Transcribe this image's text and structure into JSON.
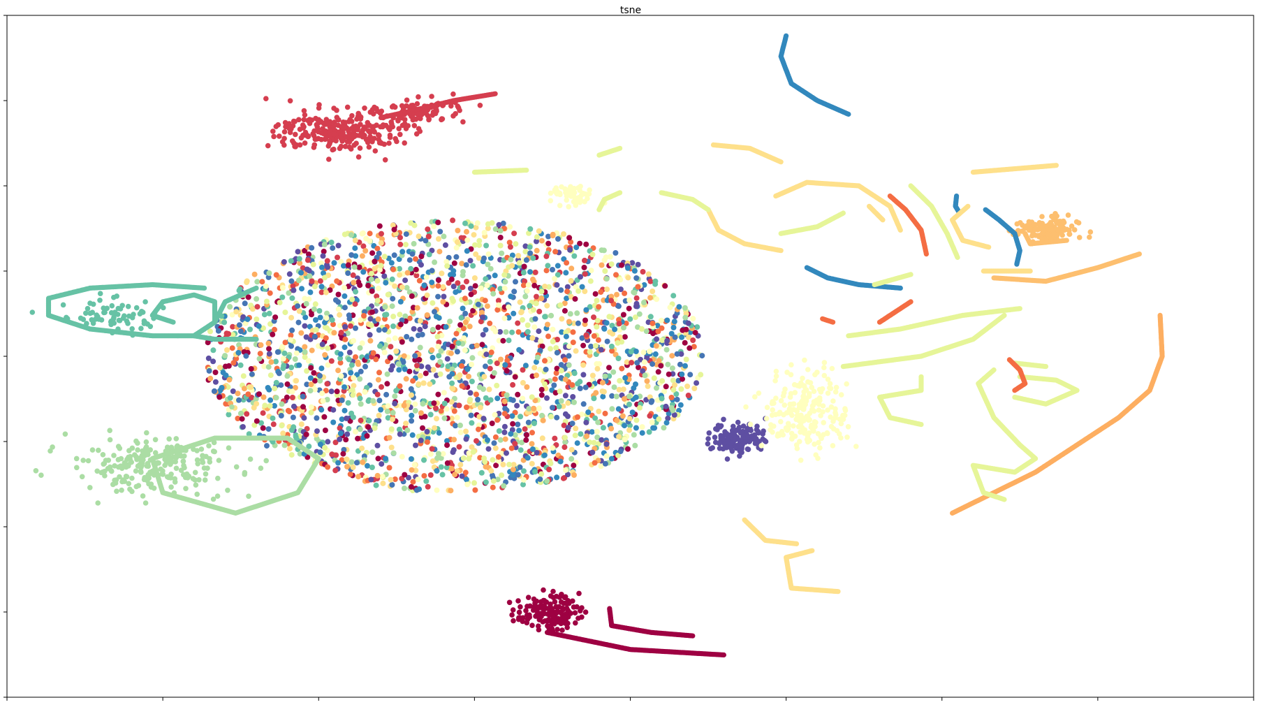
{
  "chart_data": {
    "type": "scatter",
    "title": "tsne",
    "xlabel": "",
    "ylabel": "",
    "xlim": [
      -60,
      60
    ],
    "ylim": [
      -50,
      50
    ],
    "xticks": [
      -60,
      -45,
      -30,
      -15,
      0,
      15,
      30,
      45,
      60
    ],
    "yticks": [
      -50,
      -37.5,
      -25,
      -12.5,
      0,
      12.5,
      25,
      37.5,
      50
    ],
    "tick_labels_visible": false,
    "grid": false,
    "legend": "none",
    "cloud": {
      "center": [
        -17,
        0
      ],
      "radius": [
        24,
        20
      ],
      "count": 2600,
      "colors": [
        "#4575b4",
        "#5e4fa2",
        "#3288bd",
        "#66c2a5",
        "#abdda4",
        "#e6f598",
        "#fee08b",
        "#fdae61",
        "#f46d43",
        "#d53e4f",
        "#9e0142",
        "#ffffbf"
      ]
    },
    "blobs": [
      {
        "color": "#d53e4f",
        "center": [
          -28,
          33
        ],
        "radius": [
          6,
          3
        ],
        "count": 260
      },
      {
        "color": "#d53e4f",
        "center": [
          -20,
          36
        ],
        "radius": [
          4,
          1.8
        ],
        "count": 90
      },
      {
        "color": "#66c2a5",
        "center": [
          -50,
          6
        ],
        "radius": [
          5,
          2.5
        ],
        "count": 70
      },
      {
        "color": "#abdda4",
        "center": [
          -46,
          -16
        ],
        "radius": [
          8,
          4
        ],
        "count": 230
      },
      {
        "color": "#9e0142",
        "center": [
          -8,
          -37.5
        ],
        "radius": [
          3,
          2.5
        ],
        "count": 140
      },
      {
        "color": "#5e4fa2",
        "center": [
          10.5,
          -12
        ],
        "radius": [
          2.6,
          2.4
        ],
        "count": 130
      },
      {
        "color": "#ffffbf",
        "center": [
          17,
          -8
        ],
        "radius": [
          4,
          6
        ],
        "count": 220
      },
      {
        "color": "#ffffbf",
        "center": [
          -5.5,
          23.5
        ],
        "radius": [
          2,
          1.5
        ],
        "count": 50
      },
      {
        "color": "#fdbf6f",
        "center": [
          40,
          18.5
        ],
        "radius": [
          3,
          2
        ],
        "count": 120
      }
    ],
    "series": [
      {
        "color": "#66c2a5",
        "points": [
          [
            -41,
            10
          ],
          [
            -46,
            10.5
          ],
          [
            -52,
            10
          ],
          [
            -56,
            8.5
          ],
          [
            -56,
            6
          ],
          [
            -52,
            4
          ],
          [
            -46,
            3
          ],
          [
            -42,
            3
          ],
          [
            -40,
            5
          ],
          [
            -40,
            8
          ],
          [
            -42,
            9
          ],
          [
            -45,
            8
          ],
          [
            -46,
            6
          ],
          [
            -44,
            5
          ]
        ]
      },
      {
        "color": "#66c2a5",
        "points": [
          [
            -36,
            10
          ],
          [
            -39,
            8
          ],
          [
            -40,
            5
          ],
          [
            -42,
            3
          ],
          [
            -40,
            2.5
          ],
          [
            -36,
            2.5
          ]
        ]
      },
      {
        "color": "#abdda4",
        "points": [
          [
            -33,
            -12
          ],
          [
            -40,
            -12
          ],
          [
            -46,
            -15
          ],
          [
            -45,
            -20
          ],
          [
            -38,
            -23
          ],
          [
            -32,
            -20
          ],
          [
            -30,
            -15
          ],
          [
            -33,
            -12
          ]
        ]
      },
      {
        "color": "#d53e4f",
        "points": [
          [
            -13,
            38.5
          ],
          [
            -17,
            37.5
          ],
          [
            -21,
            36
          ],
          [
            -24,
            35
          ]
        ]
      },
      {
        "color": "#3288bd",
        "points": [
          [
            15,
            47
          ],
          [
            14.5,
            44
          ],
          [
            15.5,
            40
          ],
          [
            18,
            37.5
          ],
          [
            21,
            35.5
          ]
        ]
      },
      {
        "color": "#3288bd",
        "points": [
          [
            17,
            13
          ],
          [
            19,
            11.5
          ],
          [
            22,
            10.5
          ],
          [
            26,
            10
          ]
        ]
      },
      {
        "color": "#3288bd",
        "points": [
          [
            34.2,
            21.5
          ],
          [
            35.5,
            20
          ],
          [
            37,
            18
          ],
          [
            37.5,
            15.5
          ],
          [
            37.2,
            13.5
          ]
        ]
      },
      {
        "color": "#3288bd",
        "points": [
          [
            31.4,
            23.5
          ],
          [
            31.3,
            22
          ],
          [
            31.7,
            21
          ]
        ]
      },
      {
        "color": "#9e0142",
        "points": [
          [
            -8,
            -40.5
          ],
          [
            0,
            -43
          ],
          [
            9,
            -43.8
          ]
        ]
      },
      {
        "color": "#9e0142",
        "points": [
          [
            -2,
            -37
          ],
          [
            -1.8,
            -39.5
          ],
          [
            2,
            -40.5
          ],
          [
            6,
            -41
          ]
        ]
      },
      {
        "color": "#fdae61",
        "points": [
          [
            51,
            6
          ],
          [
            51.2,
            0
          ],
          [
            50,
            -5
          ],
          [
            47,
            -9
          ],
          [
            43,
            -13
          ],
          [
            39,
            -17
          ],
          [
            35,
            -20
          ],
          [
            31,
            -23
          ]
        ]
      },
      {
        "color": "#fdbf6f",
        "points": [
          [
            35,
            11.5
          ],
          [
            40,
            11
          ],
          [
            45,
            13
          ],
          [
            49,
            15
          ]
        ]
      },
      {
        "color": "#fdbf6f",
        "points": [
          [
            38,
            18
          ],
          [
            38.5,
            16.5
          ],
          [
            42,
            17
          ]
        ]
      },
      {
        "color": "#fee08b",
        "points": [
          [
            8,
            31
          ],
          [
            11.5,
            30.5
          ],
          [
            14.5,
            28.5
          ]
        ]
      },
      {
        "color": "#fee08b",
        "points": [
          [
            14,
            23.5
          ],
          [
            17,
            25.5
          ],
          [
            22,
            25
          ],
          [
            25,
            22
          ],
          [
            26,
            18.5
          ]
        ]
      },
      {
        "color": "#fee08b",
        "points": [
          [
            7.5,
            21.5
          ],
          [
            8.5,
            18.5
          ],
          [
            11,
            16.5
          ],
          [
            14.5,
            15.5
          ]
        ]
      },
      {
        "color": "#fee08b",
        "points": [
          [
            23,
            22
          ],
          [
            24.3,
            20
          ]
        ]
      },
      {
        "color": "#fee08b",
        "points": [
          [
            32.5,
            22
          ],
          [
            31,
            20
          ],
          [
            32,
            17
          ],
          [
            34.5,
            16
          ]
        ]
      },
      {
        "color": "#fee08b",
        "points": [
          [
            33,
            27
          ],
          [
            37,
            27.5
          ],
          [
            41,
            28
          ]
        ]
      },
      {
        "color": "#fee08b",
        "points": [
          [
            34,
            12.5
          ],
          [
            38.5,
            12.5
          ]
        ]
      },
      {
        "color": "#fee08b",
        "points": [
          [
            11,
            -24
          ],
          [
            13,
            -27
          ],
          [
            16,
            -27.5
          ]
        ]
      },
      {
        "color": "#fee08b",
        "points": [
          [
            17.5,
            -28.5
          ],
          [
            15,
            -29.5
          ],
          [
            15.5,
            -34
          ],
          [
            20,
            -34.5
          ]
        ]
      },
      {
        "color": "#e6f598",
        "points": [
          [
            -15,
            27
          ],
          [
            -10,
            27.3
          ]
        ]
      },
      {
        "color": "#e6f598",
        "points": [
          [
            -3,
            21.5
          ],
          [
            -2.5,
            23
          ],
          [
            -1,
            24
          ]
        ]
      },
      {
        "color": "#e6f598",
        "points": [
          [
            3,
            24
          ],
          [
            6,
            23
          ],
          [
            7.5,
            21.5
          ]
        ]
      },
      {
        "color": "#e6f598",
        "points": [
          [
            -3,
            29.5
          ],
          [
            -1,
            30.5
          ]
        ]
      },
      {
        "color": "#e6f598",
        "points": [
          [
            14.5,
            18
          ],
          [
            18,
            19
          ],
          [
            20.5,
            21
          ]
        ]
      },
      {
        "color": "#e6f598",
        "points": [
          [
            27,
            25
          ],
          [
            29,
            22
          ],
          [
            30.5,
            18
          ],
          [
            31.5,
            14.5
          ]
        ]
      },
      {
        "color": "#e6f598",
        "points": [
          [
            21,
            3
          ],
          [
            26,
            4
          ],
          [
            32,
            6
          ],
          [
            37.5,
            7
          ]
        ]
      },
      {
        "color": "#e6f598",
        "points": [
          [
            20.5,
            -1.5
          ],
          [
            28,
            0
          ],
          [
            33,
            2.5
          ],
          [
            36,
            6
          ]
        ]
      },
      {
        "color": "#e6f598",
        "points": [
          [
            23.5,
            10.5
          ],
          [
            27,
            12
          ]
        ]
      },
      {
        "color": "#e6f598",
        "points": [
          [
            28,
            -3
          ],
          [
            28,
            -5
          ],
          [
            24,
            -6
          ],
          [
            25,
            -9
          ],
          [
            28,
            -10
          ]
        ]
      },
      {
        "color": "#e6f598",
        "points": [
          [
            35,
            -2
          ],
          [
            33.5,
            -4
          ],
          [
            35,
            -9
          ],
          [
            37.5,
            -13
          ],
          [
            39,
            -15
          ],
          [
            37,
            -17
          ],
          [
            33,
            -16
          ],
          [
            34,
            -20
          ],
          [
            36,
            -21
          ]
        ]
      },
      {
        "color": "#e6f598",
        "points": [
          [
            37.5,
            -3
          ],
          [
            41,
            -3.5
          ],
          [
            43,
            -5
          ],
          [
            40,
            -7
          ],
          [
            37,
            -6
          ]
        ]
      },
      {
        "color": "#e6f598",
        "points": [
          [
            37,
            -1
          ],
          [
            40,
            -1.5
          ]
        ]
      },
      {
        "color": "#f46d43",
        "points": [
          [
            27,
            8
          ],
          [
            25.5,
            6.5
          ],
          [
            24,
            5
          ]
        ]
      },
      {
        "color": "#f46d43",
        "points": [
          [
            25,
            23.5
          ],
          [
            26.5,
            21.5
          ],
          [
            28,
            18.5
          ],
          [
            28.5,
            15
          ]
        ]
      },
      {
        "color": "#f46d43",
        "points": [
          [
            36.5,
            -0.5
          ],
          [
            37.5,
            -2
          ],
          [
            38,
            -4
          ],
          [
            37,
            -5
          ]
        ]
      },
      {
        "color": "#f46d43",
        "points": [
          [
            18.5,
            5.5
          ],
          [
            19.5,
            5
          ]
        ]
      }
    ]
  }
}
